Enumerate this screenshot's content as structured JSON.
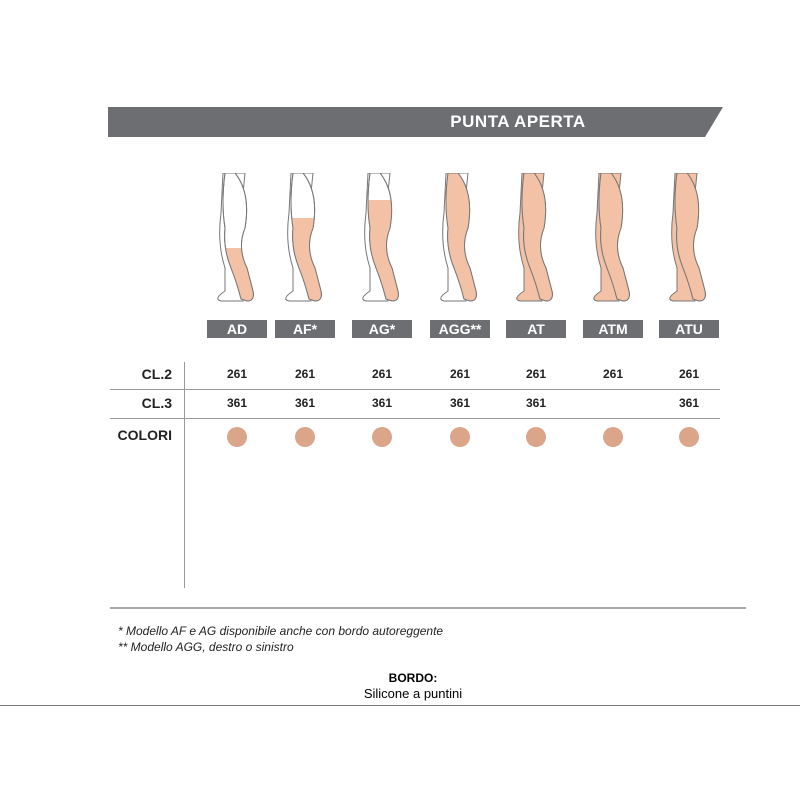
{
  "title": "PUNTA APERTA",
  "colors": {
    "banner": "#6d6e71",
    "skin": "#f3c1a6",
    "swatch": "#dba58a"
  },
  "models": [
    {
      "label": "AD",
      "cl2": "261",
      "cl3": "361",
      "coverage": "knee"
    },
    {
      "label": "AF*",
      "cl2": "261",
      "cl3": "361",
      "coverage": "mid-thigh"
    },
    {
      "label": "AG*",
      "cl2": "261",
      "cl3": "361",
      "coverage": "thigh"
    },
    {
      "label": "AGG**",
      "cl2": "261",
      "cl3": "361",
      "coverage": "single-leg-waist"
    },
    {
      "label": "AT",
      "cl2": "261",
      "cl3": "361",
      "coverage": "tights"
    },
    {
      "label": "ATM",
      "cl2": "261",
      "cl3": "",
      "coverage": "maternity-tights"
    },
    {
      "label": "ATU",
      "cl2": "261",
      "cl3": "361",
      "coverage": "tights"
    }
  ],
  "rows": {
    "cl2": "CL.2",
    "cl3": "CL.3",
    "colori": "COLORI"
  },
  "notes": [
    "*  Modello AF e AG disponibile anche con bordo autoreggente",
    "** Modello AGG, destro o sinistro"
  ],
  "bordo": {
    "label": "BORDO:",
    "value": "Silicone a puntini"
  }
}
